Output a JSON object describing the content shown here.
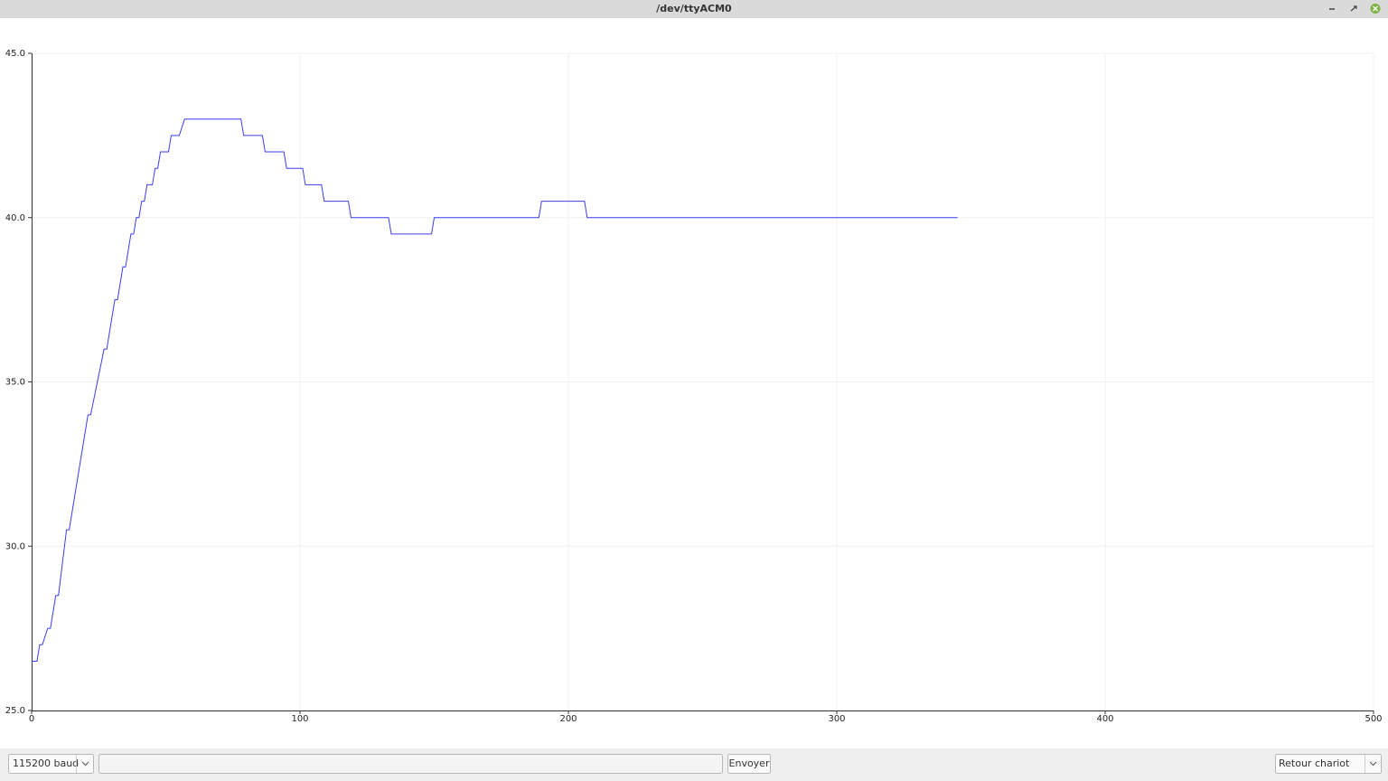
{
  "window": {
    "title": "/dev/ttyACM0"
  },
  "chart_data": {
    "type": "line",
    "x": [
      0,
      2,
      3,
      4,
      6,
      7,
      9,
      10,
      13,
      14,
      21,
      22,
      27,
      28,
      31,
      32,
      34,
      35,
      37,
      38,
      39,
      40,
      41,
      42,
      43,
      45,
      46,
      47,
      48,
      51,
      52,
      55,
      57,
      78,
      79,
      86,
      87,
      94,
      95,
      101,
      102,
      108,
      109,
      118,
      119,
      133,
      134,
      149,
      150,
      189,
      190,
      206,
      207,
      345
    ],
    "values": [
      26.5,
      26.5,
      27,
      27,
      27.5,
      27.5,
      28.5,
      28.5,
      30.5,
      30.5,
      34,
      34,
      36,
      36,
      37.5,
      37.5,
      38.5,
      38.5,
      39.5,
      39.5,
      40,
      40,
      40.5,
      40.5,
      41,
      41,
      41.5,
      41.5,
      42,
      42,
      42.5,
      42.5,
      43,
      43,
      42.5,
      42.5,
      42,
      42,
      41.5,
      41.5,
      41,
      41,
      40.5,
      40.5,
      40,
      40,
      39.5,
      39.5,
      40,
      40,
      40.5,
      40.5,
      40,
      40
    ],
    "color": "#3c3cf0",
    "xlim": [
      0,
      500
    ],
    "xticks": [
      0,
      100,
      200,
      300,
      400,
      500
    ],
    "ylim": [
      25,
      45
    ],
    "yticks": [
      {
        "value": 25,
        "label": "25.0"
      },
      {
        "value": 30,
        "label": "30.0"
      },
      {
        "value": 35,
        "label": "35.0"
      },
      {
        "value": 40,
        "label": "40.0"
      },
      {
        "value": 45,
        "label": "45.0"
      }
    ],
    "grid": true
  },
  "controls": {
    "baud": "115200 baud",
    "send": "Envoyer",
    "line_ending": "Retour chariot"
  }
}
